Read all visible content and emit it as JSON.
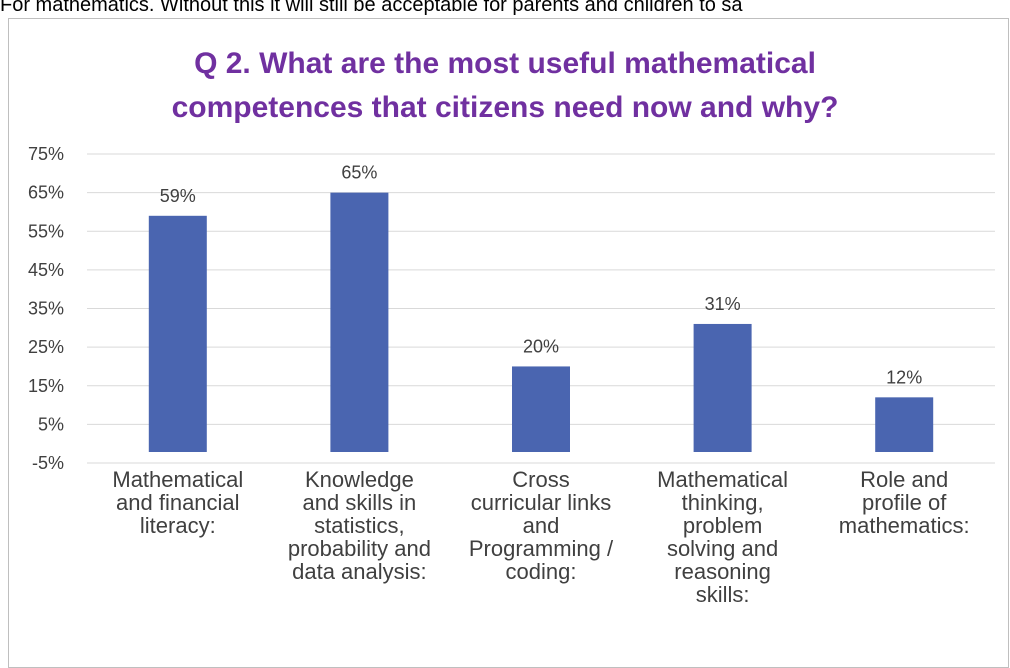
{
  "page_text": "For mathematics. Without this it will still be acceptable for parents and children to sa",
  "chart_data": {
    "type": "bar",
    "title_lines": [
      "Q 2. What are the most useful mathematical",
      "competences that citizens need now and why?"
    ],
    "categories": [
      "Mathematical\nand financial\nliteracy:",
      "Knowledge\nand skills in\nstatistics,\nprobability and\ndata analysis:",
      "Cross\ncurricular links\nand\nProgramming /\ncoding:",
      "Mathematical\nthinking,\nproblem\nsolving and\nreasoning\nskills:",
      "Role and\nprofile of\nmathematics:"
    ],
    "values": [
      59,
      65,
      20,
      31,
      12
    ],
    "data_labels": [
      "59%",
      "65%",
      "20%",
      "31%",
      "12%"
    ],
    "yticks": [
      75,
      65,
      55,
      45,
      35,
      25,
      15,
      5,
      -5
    ],
    "ytick_labels": [
      "75%",
      "65%",
      "55%",
      "45%",
      "35%",
      "25%",
      "15%",
      "5%",
      "-5%"
    ],
    "ylim": [
      -5,
      75
    ],
    "bar_color": "#4a65b0",
    "grid_color": "#d9d9d9",
    "title_color": "#7030a0",
    "grid": true
  }
}
